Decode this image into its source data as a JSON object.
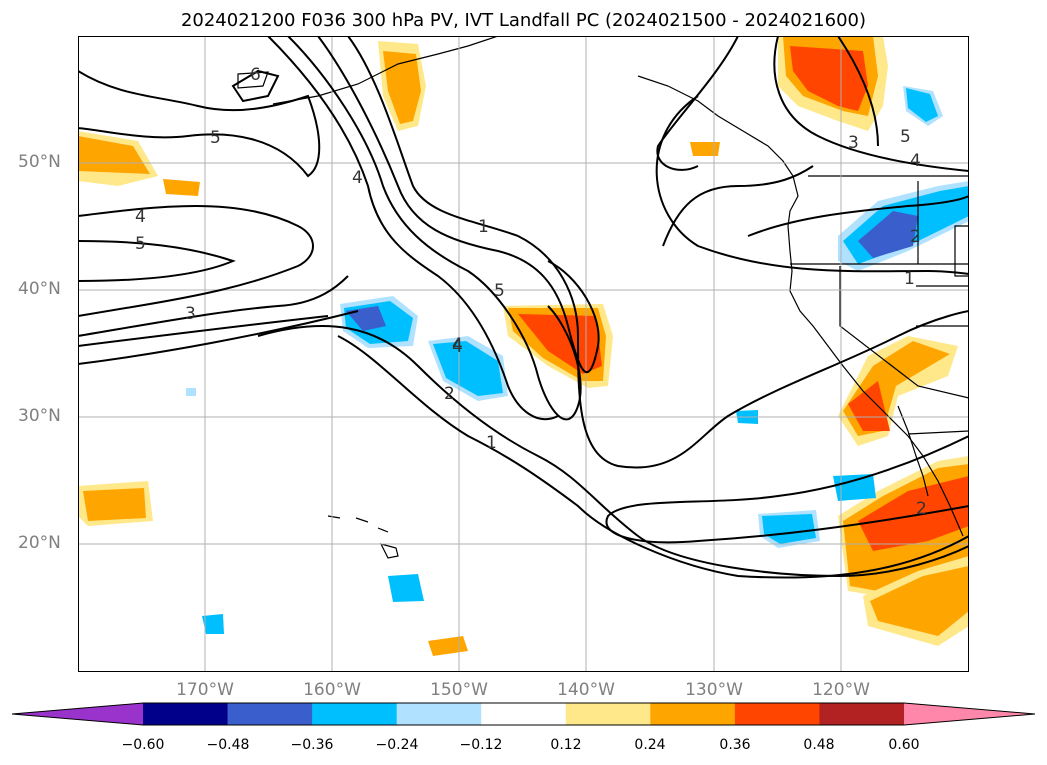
{
  "title": "2024021200 F036 300 hPa PV, IVT Landfall PC (2024021500 - 2024021600)",
  "lat_labels": [
    "50°N",
    "40°N",
    "30°N",
    "20°N"
  ],
  "lon_labels": [
    "170°W",
    "160°W",
    "150°W",
    "140°W",
    "130°W",
    "120°W"
  ],
  "pv_contour_labels": [
    "6",
    "5",
    "4",
    "5",
    "4",
    "3",
    "4",
    "1",
    "5",
    "4",
    "2",
    "1",
    "3",
    "5",
    "4",
    "2",
    "1",
    "2"
  ],
  "colorbar": {
    "ticks": [
      "−0.60",
      "−0.48",
      "−0.36",
      "−0.24",
      "−0.12",
      "0.12",
      "0.24",
      "0.36",
      "0.48",
      "0.60"
    ],
    "colors": [
      "#9933cc",
      "#00008b",
      "#3a5fcd",
      "#00bfff",
      "#b0e2ff",
      "#ffffff",
      "#ffe88a",
      "#ffa500",
      "#ff4500",
      "#b22222",
      "#ff88aa"
    ]
  },
  "colors": {
    "pos_low": "#ffe88a",
    "pos_mid": "#ffa500",
    "pos_high": "#ff4500",
    "neg_low": "#b0e2ff",
    "neg_mid": "#00bfff",
    "neg_high": "#3a5fcd"
  }
}
